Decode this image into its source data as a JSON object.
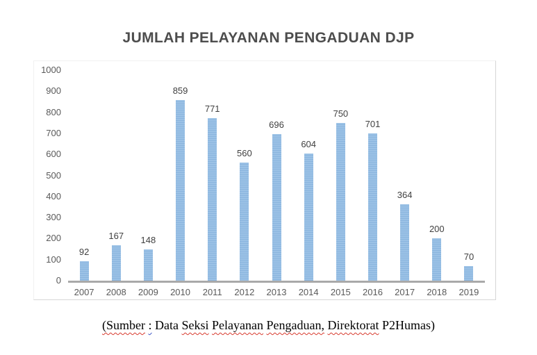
{
  "page": {
    "caption_segments": [
      {
        "text": "(Sumber",
        "underline": "red"
      },
      {
        "text": " ",
        "underline": "none"
      },
      {
        "text": ":",
        "underline": "blue"
      },
      {
        "text": " Data ",
        "underline": "none"
      },
      {
        "text": "Seksi",
        "underline": "red"
      },
      {
        "text": " ",
        "underline": "none"
      },
      {
        "text": "Pelayanan",
        "underline": "red"
      },
      {
        "text": " ",
        "underline": "none"
      },
      {
        "text": "Pengaduan,",
        "underline": "red"
      },
      {
        "text": " ",
        "underline": "none"
      },
      {
        "text": "Direktorat",
        "underline": "red"
      },
      {
        "text": " P2Humas)",
        "underline": "none"
      }
    ]
  },
  "chart_data": {
    "type": "bar",
    "title": "JUMLAH PELAYANAN PENGADUAN DJP",
    "categories": [
      "2007",
      "2008",
      "2009",
      "2010",
      "2011",
      "2012",
      "2013",
      "2014",
      "2015",
      "2016",
      "2017",
      "2018",
      "2019"
    ],
    "values": [
      92,
      167,
      148,
      859,
      771,
      560,
      696,
      604,
      750,
      701,
      364,
      200,
      70
    ],
    "xlabel": "",
    "ylabel": "",
    "ylim": [
      0,
      1000
    ],
    "ytick_step": 100,
    "grid": false,
    "legend": "none",
    "data_labels": true,
    "bar_color": "#9cc2e6",
    "bar_stripe_color": "#8ab5de",
    "axis_line_color": "#a9a9a9",
    "tick_label_color": "#595959",
    "data_label_color": "#404040",
    "title_color": "#4d4d4d"
  }
}
